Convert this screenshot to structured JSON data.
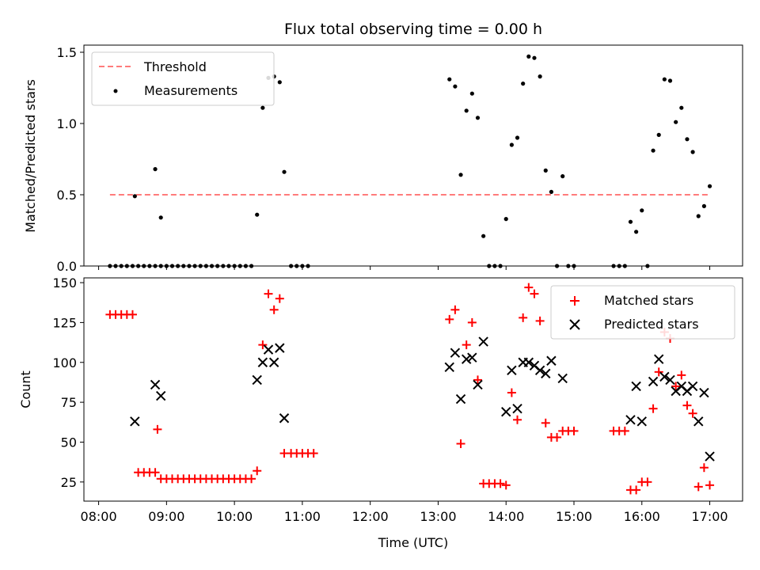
{
  "chart_data": [
    {
      "type": "scatter",
      "title": "Flux total observing time = 0.00 h",
      "ylabel": "Matched/Predicted stars",
      "xlim": [
        "07:47",
        "17:29"
      ],
      "ylim": [
        0,
        1.55
      ],
      "yticks": [
        "0.0",
        "0.5",
        "1.0",
        "1.5"
      ],
      "legend_position": "upper-left",
      "threshold": {
        "name": "Threshold",
        "value": 0.5,
        "x_range": [
          "08:10",
          "17:00"
        ],
        "color": "#ff7b7b"
      },
      "series": [
        {
          "name": "Measurements",
          "color": "#000000",
          "marker": "dot",
          "points": [
            [
              "08:10",
              0
            ],
            [
              "08:15",
              0
            ],
            [
              "08:20",
              0
            ],
            [
              "08:25",
              0
            ],
            [
              "08:30",
              0
            ],
            [
              "08:35",
              0
            ],
            [
              "08:40",
              0
            ],
            [
              "08:45",
              0
            ],
            [
              "08:50",
              0
            ],
            [
              "08:55",
              0
            ],
            [
              "09:00",
              0
            ],
            [
              "09:05",
              0
            ],
            [
              "09:10",
              0
            ],
            [
              "09:15",
              0
            ],
            [
              "09:20",
              0
            ],
            [
              "09:25",
              0
            ],
            [
              "09:30",
              0
            ],
            [
              "09:35",
              0
            ],
            [
              "09:40",
              0
            ],
            [
              "09:45",
              0
            ],
            [
              "09:50",
              0
            ],
            [
              "09:55",
              0
            ],
            [
              "10:00",
              0
            ],
            [
              "10:05",
              0
            ],
            [
              "10:10",
              0
            ],
            [
              "10:15",
              0
            ],
            [
              "08:32",
              0.49
            ],
            [
              "08:50",
              0.68
            ],
            [
              "08:55",
              0.34
            ],
            [
              "10:20",
              0.36
            ],
            [
              "10:25",
              1.11
            ],
            [
              "10:30",
              1.32
            ],
            [
              "10:35",
              1.33
            ],
            [
              "10:40",
              1.29
            ],
            [
              "10:44",
              0.66
            ],
            [
              "10:50",
              0
            ],
            [
              "10:55",
              0
            ],
            [
              "11:00",
              0
            ],
            [
              "11:05",
              0
            ],
            [
              "13:10",
              1.31
            ],
            [
              "13:15",
              1.26
            ],
            [
              "13:20",
              0.64
            ],
            [
              "13:25",
              1.09
            ],
            [
              "13:30",
              1.21
            ],
            [
              "13:35",
              1.04
            ],
            [
              "13:40",
              0.21
            ],
            [
              "13:45",
              0
            ],
            [
              "13:50",
              0
            ],
            [
              "13:55",
              0
            ],
            [
              "14:00",
              0.33
            ],
            [
              "14:05",
              0.85
            ],
            [
              "14:10",
              0.9
            ],
            [
              "14:15",
              1.28
            ],
            [
              "14:20",
              1.47
            ],
            [
              "14:25",
              1.46
            ],
            [
              "14:30",
              1.33
            ],
            [
              "14:35",
              0.67
            ],
            [
              "14:40",
              0.52
            ],
            [
              "14:45",
              0
            ],
            [
              "14:50",
              0.63
            ],
            [
              "14:55",
              0
            ],
            [
              "15:00",
              0
            ],
            [
              "15:35",
              0
            ],
            [
              "15:40",
              0
            ],
            [
              "15:45",
              0
            ],
            [
              "15:50",
              0.31
            ],
            [
              "15:55",
              0.24
            ],
            [
              "16:00",
              0.39
            ],
            [
              "16:05",
              0
            ],
            [
              "16:10",
              0.81
            ],
            [
              "16:15",
              0.92
            ],
            [
              "16:20",
              1.31
            ],
            [
              "16:25",
              1.3
            ],
            [
              "16:30",
              1.01
            ],
            [
              "16:35",
              1.11
            ],
            [
              "16:40",
              0.89
            ],
            [
              "16:45",
              0.8
            ],
            [
              "16:50",
              0.35
            ],
            [
              "16:55",
              0.42
            ],
            [
              "17:00",
              0.56
            ]
          ]
        }
      ]
    },
    {
      "type": "scatter",
      "xlabel": "Time (UTC)",
      "ylabel": "Count",
      "xlim": [
        "07:47",
        "17:29"
      ],
      "ylim": [
        13,
        153
      ],
      "yticks": [
        "25",
        "50",
        "75",
        "100",
        "125",
        "150"
      ],
      "xticks": [
        "08:00",
        "09:00",
        "10:00",
        "11:00",
        "12:00",
        "13:00",
        "14:00",
        "15:00",
        "16:00",
        "17:00"
      ],
      "legend_position": "upper-right",
      "series": [
        {
          "name": "Matched stars",
          "color": "#ff0000",
          "marker": "plus",
          "points": [
            [
              "08:10",
              130
            ],
            [
              "08:15",
              130
            ],
            [
              "08:20",
              130
            ],
            [
              "08:25",
              130
            ],
            [
              "08:30",
              130
            ],
            [
              "08:35",
              31
            ],
            [
              "08:40",
              31
            ],
            [
              "08:45",
              31
            ],
            [
              "08:50",
              31
            ],
            [
              "08:52",
              58
            ],
            [
              "08:55",
              27
            ],
            [
              "09:00",
              27
            ],
            [
              "09:05",
              27
            ],
            [
              "09:10",
              27
            ],
            [
              "09:15",
              27
            ],
            [
              "09:20",
              27
            ],
            [
              "09:25",
              27
            ],
            [
              "09:30",
              27
            ],
            [
              "09:35",
              27
            ],
            [
              "09:40",
              27
            ],
            [
              "09:45",
              27
            ],
            [
              "09:50",
              27
            ],
            [
              "09:55",
              27
            ],
            [
              "10:00",
              27
            ],
            [
              "10:05",
              27
            ],
            [
              "10:10",
              27
            ],
            [
              "10:15",
              27
            ],
            [
              "10:20",
              32
            ],
            [
              "10:25",
              111
            ],
            [
              "10:30",
              143
            ],
            [
              "10:35",
              133
            ],
            [
              "10:40",
              140
            ],
            [
              "10:44",
              43
            ],
            [
              "10:50",
              43
            ],
            [
              "10:55",
              43
            ],
            [
              "11:00",
              43
            ],
            [
              "11:05",
              43
            ],
            [
              "11:10",
              43
            ],
            [
              "13:10",
              127
            ],
            [
              "13:15",
              133
            ],
            [
              "13:20",
              49
            ],
            [
              "13:25",
              111
            ],
            [
              "13:30",
              125
            ],
            [
              "13:35",
              89
            ],
            [
              "13:40",
              24
            ],
            [
              "13:45",
              24
            ],
            [
              "13:50",
              24
            ],
            [
              "13:55",
              24
            ],
            [
              "14:00",
              23
            ],
            [
              "14:05",
              81
            ],
            [
              "14:10",
              64
            ],
            [
              "14:15",
              128
            ],
            [
              "14:20",
              147
            ],
            [
              "14:25",
              143
            ],
            [
              "14:30",
              126
            ],
            [
              "14:35",
              62
            ],
            [
              "14:40",
              53
            ],
            [
              "14:45",
              53
            ],
            [
              "14:50",
              57
            ],
            [
              "14:55",
              57
            ],
            [
              "15:00",
              57
            ],
            [
              "15:35",
              57
            ],
            [
              "15:40",
              57
            ],
            [
              "15:45",
              57
            ],
            [
              "15:50",
              20
            ],
            [
              "15:55",
              20
            ],
            [
              "16:00",
              25
            ],
            [
              "16:05",
              25
            ],
            [
              "16:10",
              71
            ],
            [
              "16:15",
              94
            ],
            [
              "16:20",
              119
            ],
            [
              "16:25",
              115
            ],
            [
              "16:30",
              85
            ],
            [
              "16:35",
              92
            ],
            [
              "16:40",
              73
            ],
            [
              "16:45",
              68
            ],
            [
              "16:50",
              22
            ],
            [
              "16:55",
              34
            ],
            [
              "17:00",
              23
            ]
          ]
        },
        {
          "name": "Predicted stars",
          "color": "#000000",
          "marker": "x",
          "points": [
            [
              "08:32",
              63
            ],
            [
              "08:50",
              86
            ],
            [
              "08:55",
              79
            ],
            [
              "10:20",
              89
            ],
            [
              "10:25",
              100
            ],
            [
              "10:30",
              108
            ],
            [
              "10:35",
              100
            ],
            [
              "10:40",
              109
            ],
            [
              "10:44",
              65
            ],
            [
              "13:10",
              97
            ],
            [
              "13:15",
              106
            ],
            [
              "13:20",
              77
            ],
            [
              "13:25",
              102
            ],
            [
              "13:30",
              103
            ],
            [
              "13:35",
              86
            ],
            [
              "13:40",
              113
            ],
            [
              "14:00",
              69
            ],
            [
              "14:05",
              95
            ],
            [
              "14:10",
              71
            ],
            [
              "14:15",
              100
            ],
            [
              "14:20",
              100
            ],
            [
              "14:25",
              98
            ],
            [
              "14:30",
              95
            ],
            [
              "14:35",
              93
            ],
            [
              "14:40",
              101
            ],
            [
              "14:50",
              90
            ],
            [
              "15:50",
              64
            ],
            [
              "15:55",
              85
            ],
            [
              "16:00",
              63
            ],
            [
              "16:10",
              88
            ],
            [
              "16:15",
              102
            ],
            [
              "16:20",
              91
            ],
            [
              "16:25",
              89
            ],
            [
              "16:30",
              82
            ],
            [
              "16:35",
              85
            ],
            [
              "16:40",
              82
            ],
            [
              "16:45",
              85
            ],
            [
              "16:50",
              63
            ],
            [
              "16:55",
              81
            ],
            [
              "17:00",
              41
            ]
          ]
        }
      ]
    }
  ]
}
